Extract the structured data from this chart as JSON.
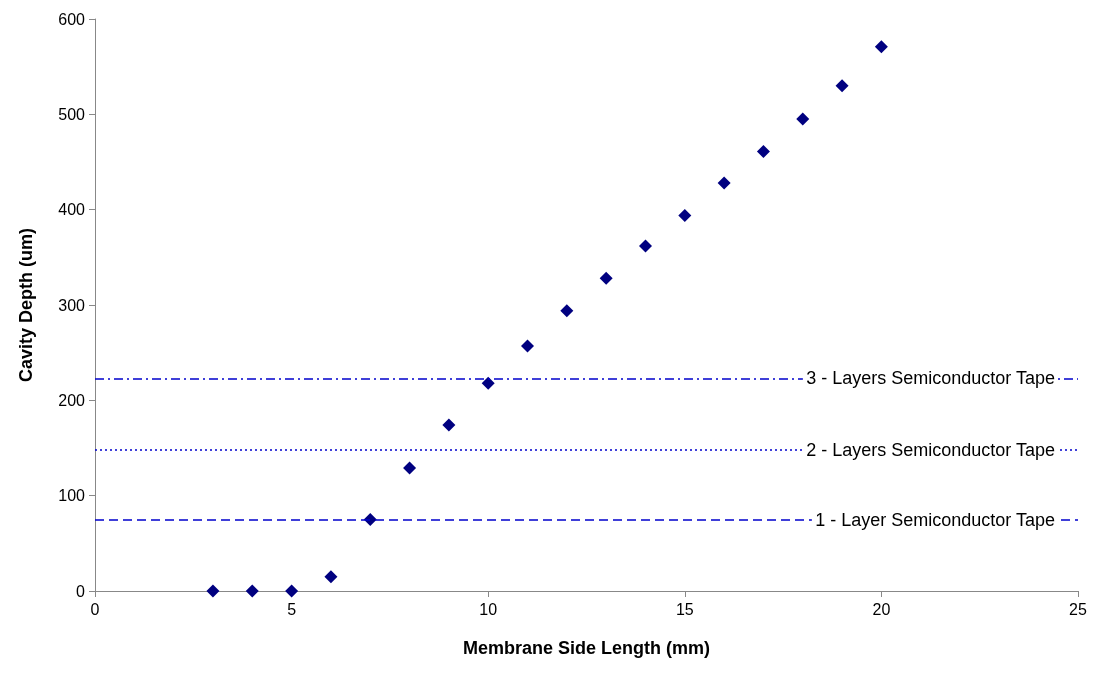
{
  "chart_data": {
    "type": "scatter",
    "xlabel": "Membrane Side Length (mm)",
    "ylabel": "Cavity Depth (um)",
    "x": [
      3,
      4,
      5,
      6,
      7,
      8,
      9,
      10,
      11,
      12,
      13,
      14,
      15,
      16,
      17,
      18,
      19,
      20
    ],
    "series": [
      {
        "color": "#000080",
        "values": [
          0,
          0,
          0,
          15,
          75,
          129,
          174,
          218,
          257,
          294,
          328,
          362,
          394,
          428,
          461,
          495,
          530,
          571
        ]
      }
    ],
    "xlim": [
      0,
      25
    ],
    "xticks": [
      0,
      5,
      10,
      15,
      20,
      25
    ],
    "ylim": [
      0,
      600
    ],
    "yticks": [
      0,
      100,
      200,
      300,
      400,
      500,
      600
    ],
    "grid": false,
    "marker": "diamond",
    "ref_lines": [
      {
        "axis": "y",
        "value": 75,
        "label": "1 - Layer Semiconductor Tape",
        "color": "#0000cc",
        "line_style": "dashed"
      },
      {
        "axis": "y",
        "value": 148,
        "label": "2 - Layers Semiconductor Tape",
        "color": "#0000cc",
        "line_style": "dotted"
      },
      {
        "axis": "y",
        "value": 223,
        "label": "3 - Layers Semiconductor Tape",
        "color": "#0000cc",
        "line_style": "dashdot"
      }
    ]
  }
}
